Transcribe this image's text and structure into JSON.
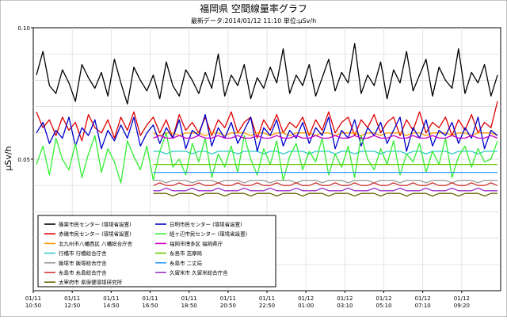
{
  "chart_data": {
    "type": "line",
    "title": "福岡県 空間線量率グラフ",
    "subtitle": "最新データ:2014/01/12 11:10 単位:μSv/h",
    "ylabel": "μSv/h",
    "xlabel": "",
    "ylim": [
      0.0,
      0.1
    ],
    "yticks": [
      "0.10",
      "0.05"
    ],
    "xticks": [
      [
        "01/11",
        "10:50"
      ],
      [
        "01/11",
        "12:50"
      ],
      [
        "01/11",
        "14:50"
      ],
      [
        "01/11",
        "16:50"
      ],
      [
        "01/11",
        "18:50"
      ],
      [
        "01/11",
        "20:50"
      ],
      [
        "01/11",
        "22:50"
      ],
      [
        "01/12",
        "01:00"
      ],
      [
        "01/12",
        "03:10"
      ],
      [
        "01/12",
        "05:10"
      ],
      [
        "01/12",
        "07:10"
      ],
      [
        "01/12",
        "09:20"
      ]
    ],
    "legend_position": "bottom-left",
    "grid": true,
    "series": [
      {
        "name": "篠栗市民センター (環境省設置)",
        "color": "#000000",
        "start": 0,
        "values": [
          0.082,
          0.091,
          0.078,
          0.075,
          0.084,
          0.079,
          0.072,
          0.086,
          0.081,
          0.077,
          0.083,
          0.074,
          0.088,
          0.079,
          0.071,
          0.085,
          0.08,
          0.076,
          0.082,
          0.073,
          0.087,
          0.078,
          0.074,
          0.084,
          0.08,
          0.075,
          0.083,
          0.077,
          0.09,
          0.074,
          0.082,
          0.078,
          0.086,
          0.073,
          0.081,
          0.077,
          0.085,
          0.079,
          0.092,
          0.075,
          0.082,
          0.078,
          0.086,
          0.074,
          0.081,
          0.088,
          0.076,
          0.083,
          0.079,
          0.094,
          0.075,
          0.082,
          0.078,
          0.087,
          0.073,
          0.084,
          0.079,
          0.091,
          0.076,
          0.082,
          0.088,
          0.074,
          0.085,
          0.08,
          0.077,
          0.092,
          0.075,
          0.083,
          0.079,
          0.086,
          0.074,
          0.082
        ]
      },
      {
        "name": "赤磯市民センター (環境省設置)",
        "color": "#e00000",
        "start": 0,
        "values": [
          0.068,
          0.062,
          0.065,
          0.059,
          0.066,
          0.061,
          0.064,
          0.057,
          0.067,
          0.062,
          0.06,
          0.065,
          0.058,
          0.066,
          0.061,
          0.068,
          0.059,
          0.063,
          0.066,
          0.06,
          0.065,
          0.058,
          0.067,
          0.061,
          0.064,
          0.06,
          0.066,
          0.059,
          0.065,
          0.062,
          0.068,
          0.06,
          0.064,
          0.066,
          0.058,
          0.065,
          0.061,
          0.067,
          0.06,
          0.064,
          0.062,
          0.066,
          0.059,
          0.065,
          0.061,
          0.068,
          0.06,
          0.064,
          0.066,
          0.059,
          0.065,
          0.062,
          0.067,
          0.06,
          0.064,
          0.066,
          0.059,
          0.065,
          0.061,
          0.068,
          0.06,
          0.064,
          0.062,
          0.066,
          0.059,
          0.065,
          0.061,
          0.067,
          0.06,
          0.064,
          0.062,
          0.072
        ]
      },
      {
        "name": "北九州市八幡西区 八幡総合庁舎",
        "color": "#ff9900",
        "start": 18,
        "values": [
          0.06,
          0.059,
          0.06,
          0.06,
          0.059,
          0.06,
          0.06,
          0.06,
          0.059,
          0.06,
          0.06,
          0.059,
          0.06,
          0.06,
          0.06,
          0.059,
          0.06,
          0.06,
          0.059,
          0.06,
          0.06,
          0.059,
          0.06,
          0.06,
          0.06,
          0.059,
          0.06,
          0.06,
          0.059,
          0.06,
          0.06,
          0.06,
          0.059,
          0.06,
          0.06,
          0.059,
          0.06,
          0.06,
          0.06,
          0.059,
          0.06,
          0.06,
          0.059,
          0.06,
          0.06,
          0.06,
          0.059,
          0.06,
          0.06,
          0.059,
          0.06,
          0.06,
          0.06,
          0.059
        ]
      },
      {
        "name": "行橋市 行橋総合庁舎",
        "color": "#33cccc",
        "start": 18,
        "values": [
          0.053,
          0.053,
          0.052,
          0.053,
          0.053,
          0.053,
          0.052,
          0.053,
          0.053,
          0.052,
          0.053,
          0.053,
          0.053,
          0.052,
          0.053,
          0.053,
          0.053,
          0.052,
          0.053,
          0.053,
          0.052,
          0.053,
          0.053,
          0.053,
          0.052,
          0.053,
          0.053,
          0.053,
          0.052,
          0.053,
          0.053,
          0.052,
          0.053,
          0.053,
          0.053,
          0.052,
          0.053,
          0.053,
          0.053,
          0.052,
          0.053,
          0.053,
          0.052,
          0.053,
          0.053,
          0.053,
          0.052,
          0.053,
          0.053,
          0.053,
          0.052,
          0.053,
          0.053,
          0.053
        ]
      },
      {
        "name": "飯塚市 飯塚総合庁舎",
        "color": "#999999",
        "start": 18,
        "values": [
          0.042,
          0.042,
          0.041,
          0.042,
          0.042,
          0.042,
          0.041,
          0.042,
          0.042,
          0.042,
          0.041,
          0.042,
          0.042,
          0.042,
          0.041,
          0.042,
          0.042,
          0.042,
          0.041,
          0.042,
          0.042,
          0.042,
          0.041,
          0.042,
          0.042,
          0.042,
          0.041,
          0.042,
          0.042,
          0.042,
          0.041,
          0.042,
          0.042,
          0.042,
          0.041,
          0.042,
          0.042,
          0.042,
          0.041,
          0.042,
          0.042,
          0.042,
          0.041,
          0.042,
          0.042,
          0.042,
          0.041,
          0.042,
          0.042,
          0.042,
          0.041,
          0.042,
          0.042,
          0.042
        ]
      },
      {
        "name": "糸島市 糸島総合庁舎",
        "color": "#cc3333",
        "start": 18,
        "values": [
          0.04,
          0.041,
          0.04,
          0.04,
          0.041,
          0.04,
          0.04,
          0.041,
          0.04,
          0.04,
          0.041,
          0.04,
          0.04,
          0.041,
          0.04,
          0.04,
          0.041,
          0.04,
          0.04,
          0.041,
          0.04,
          0.04,
          0.041,
          0.04,
          0.04,
          0.041,
          0.04,
          0.04,
          0.041,
          0.04,
          0.04,
          0.041,
          0.04,
          0.04,
          0.041,
          0.04,
          0.04,
          0.041,
          0.04,
          0.04,
          0.041,
          0.04,
          0.04,
          0.041,
          0.04,
          0.04,
          0.041,
          0.04,
          0.04,
          0.041,
          0.04,
          0.04,
          0.041,
          0.04
        ]
      },
      {
        "name": "太宰府市 県保健環境研究所",
        "color": "#666600",
        "start": 18,
        "values": [
          0.037,
          0.037,
          0.037,
          0.036,
          0.037,
          0.037,
          0.037,
          0.036,
          0.037,
          0.037,
          0.037,
          0.036,
          0.037,
          0.037,
          0.037,
          0.036,
          0.037,
          0.037,
          0.037,
          0.036,
          0.037,
          0.037,
          0.037,
          0.036,
          0.037,
          0.037,
          0.037,
          0.036,
          0.037,
          0.037,
          0.037,
          0.036,
          0.037,
          0.037,
          0.037,
          0.036,
          0.037,
          0.037,
          0.037,
          0.036,
          0.037,
          0.037,
          0.037,
          0.036,
          0.037,
          0.037,
          0.037,
          0.036,
          0.037,
          0.037,
          0.037,
          0.036,
          0.037,
          0.037
        ]
      },
      {
        "name": "日明市民センター (環境省設置)",
        "color": "#0000cc",
        "start": 0,
        "values": [
          0.06,
          0.064,
          0.056,
          0.061,
          0.058,
          0.066,
          0.055,
          0.062,
          0.059,
          0.065,
          0.054,
          0.061,
          0.057,
          0.063,
          0.058,
          0.066,
          0.055,
          0.06,
          0.063,
          0.056,
          0.062,
          0.058,
          0.065,
          0.054,
          0.061,
          0.059,
          0.067,
          0.055,
          0.062,
          0.058,
          0.064,
          0.056,
          0.061,
          0.066,
          0.053,
          0.062,
          0.059,
          0.065,
          0.055,
          0.061,
          0.058,
          0.064,
          0.056,
          0.062,
          0.059,
          0.066,
          0.054,
          0.061,
          0.058,
          0.065,
          0.055,
          0.062,
          0.059,
          0.064,
          0.056,
          0.061,
          0.066,
          0.053,
          0.062,
          0.058,
          0.065,
          0.055,
          0.061,
          0.059,
          0.064,
          0.056,
          0.062,
          0.058,
          0.066,
          0.054,
          0.061,
          0.059
        ]
      },
      {
        "name": "経ヶ辺市民センター (環境省設置)",
        "color": "#33ee33",
        "start": 0,
        "values": [
          0.048,
          0.055,
          0.044,
          0.058,
          0.05,
          0.046,
          0.056,
          0.043,
          0.052,
          0.059,
          0.045,
          0.054,
          0.049,
          0.041,
          0.057,
          0.051,
          0.046,
          0.055,
          0.042,
          0.053,
          0.06,
          0.047,
          0.05,
          0.044,
          0.056,
          0.049,
          0.058,
          0.043,
          0.052,
          0.047,
          0.055,
          0.045,
          0.059,
          0.05,
          0.044,
          0.054,
          0.048,
          0.057,
          0.042,
          0.051,
          0.056,
          0.046,
          0.053,
          0.049,
          0.058,
          0.044,
          0.052,
          0.047,
          0.055,
          0.043,
          0.059,
          0.05,
          0.046,
          0.054,
          0.048,
          0.057,
          0.044,
          0.052,
          0.049,
          0.056,
          0.045,
          0.053,
          0.048,
          0.058,
          0.043,
          0.051,
          0.055,
          0.047,
          0.054,
          0.049,
          0.05,
          0.057
        ]
      },
      {
        "name": "福岡市博多区 福岡県庁",
        "color": "#cc00cc",
        "start": 18,
        "values": [
          0.058,
          0.059,
          0.058,
          0.058,
          0.059,
          0.058,
          0.058,
          0.059,
          0.058,
          0.058,
          0.059,
          0.058,
          0.058,
          0.059,
          0.058,
          0.058,
          0.059,
          0.058,
          0.058,
          0.059,
          0.058,
          0.058,
          0.059,
          0.058,
          0.058,
          0.059,
          0.058,
          0.058,
          0.059,
          0.058,
          0.058,
          0.059,
          0.058,
          0.058,
          0.059,
          0.058,
          0.058,
          0.059,
          0.058,
          0.058,
          0.059,
          0.058,
          0.058,
          0.059,
          0.058,
          0.058,
          0.059,
          0.058,
          0.058,
          0.059,
          0.058,
          0.058,
          0.059,
          0.058
        ]
      },
      {
        "name": "糸島市 志摩局",
        "color": "#66cc00",
        "start": 18,
        "values": [
          0.048,
          0.048,
          0.048,
          0.048,
          0.048,
          0.048,
          0.048,
          0.048,
          0.048,
          0.048,
          0.048,
          0.048,
          0.048,
          0.048,
          0.048,
          0.048,
          0.048,
          0.048,
          0.048,
          0.048,
          0.048,
          0.048,
          0.048,
          0.048,
          0.048,
          0.048,
          0.048,
          0.048,
          0.048,
          0.048,
          0.048,
          0.048,
          0.048,
          0.048,
          0.048,
          0.048,
          0.048,
          0.048,
          0.048,
          0.048,
          0.048,
          0.048,
          0.048,
          0.048,
          0.048,
          0.048,
          0.048,
          0.048,
          0.048,
          0.048,
          0.048,
          0.048,
          0.048,
          0.048
        ]
      },
      {
        "name": "糸島市 二丈局",
        "color": "#3399ff",
        "start": 18,
        "values": [
          0.045,
          0.045,
          0.045,
          0.045,
          0.045,
          0.045,
          0.045,
          0.045,
          0.045,
          0.045,
          0.045,
          0.045,
          0.045,
          0.045,
          0.045,
          0.045,
          0.045,
          0.045,
          0.045,
          0.045,
          0.045,
          0.045,
          0.045,
          0.045,
          0.045,
          0.045,
          0.045,
          0.045,
          0.045,
          0.045,
          0.045,
          0.045,
          0.045,
          0.045,
          0.045,
          0.045,
          0.045,
          0.045,
          0.045,
          0.045,
          0.045,
          0.045,
          0.045,
          0.045,
          0.045,
          0.045,
          0.045,
          0.045,
          0.045,
          0.045,
          0.045,
          0.045,
          0.045,
          0.045
        ]
      },
      {
        "name": "久留米市 久留米総合庁舎",
        "color": "#9933cc",
        "start": 18,
        "values": [
          0.038,
          0.038,
          0.039,
          0.038,
          0.038,
          0.038,
          0.039,
          0.038,
          0.038,
          0.038,
          0.039,
          0.038,
          0.038,
          0.038,
          0.039,
          0.038,
          0.038,
          0.038,
          0.039,
          0.038,
          0.038,
          0.038,
          0.039,
          0.038,
          0.038,
          0.038,
          0.039,
          0.038,
          0.038,
          0.038,
          0.039,
          0.038,
          0.038,
          0.038,
          0.039,
          0.038,
          0.038,
          0.038,
          0.039,
          0.038,
          0.038,
          0.038,
          0.039,
          0.038,
          0.038,
          0.038,
          0.039,
          0.038,
          0.038,
          0.038,
          0.039,
          0.038,
          0.038,
          0.038
        ]
      }
    ]
  }
}
